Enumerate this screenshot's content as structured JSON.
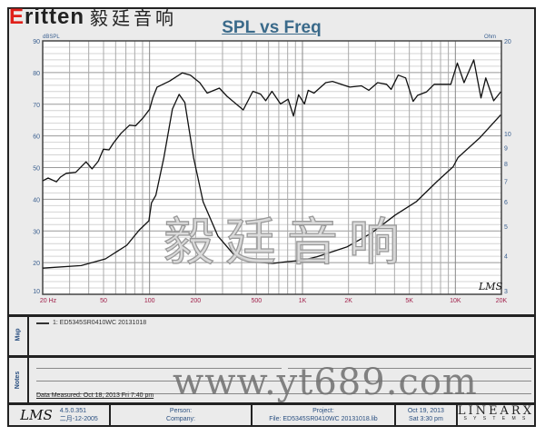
{
  "logo": {
    "brand_first": "E",
    "brand_rest": "ritten",
    "chinese": "毅廷音响"
  },
  "watermarks": {
    "chinese": "毅廷音响",
    "url": "www.yt689.com"
  },
  "chart_data": {
    "type": "line",
    "title": "SPL vs Freq",
    "xscale": "log",
    "xlim": [
      20,
      20000
    ],
    "x_tick_labels": [
      {
        "v": 20,
        "t": "20  Hz"
      },
      {
        "v": 50,
        "t": "50"
      },
      {
        "v": 100,
        "t": "100"
      },
      {
        "v": 200,
        "t": "200"
      },
      {
        "v": 500,
        "t": "500"
      },
      {
        "v": 1000,
        "t": "1K"
      },
      {
        "v": 2000,
        "t": "2K"
      },
      {
        "v": 5000,
        "t": "5K"
      },
      {
        "v": 10000,
        "t": "10K"
      },
      {
        "v": 20000,
        "t": "20K"
      }
    ],
    "ylabel_left": "dBSPL",
    "ylim_left": [
      10,
      90
    ],
    "y_ticks_left": [
      10,
      20,
      30,
      40,
      50,
      60,
      70,
      80,
      90
    ],
    "ylabel_right": "Ohm",
    "yscale_right": "log",
    "ylim_right": [
      3,
      20
    ],
    "y_ticks_right": [
      3,
      4,
      5,
      6,
      7,
      8,
      9,
      10,
      20
    ],
    "grid": true,
    "watermark": "LMS",
    "series": [
      {
        "axis": "left",
        "points": [
          [
            20,
            45.8
          ],
          [
            21.7,
            46.7
          ],
          [
            24.6,
            45.5
          ],
          [
            26.1,
            47
          ],
          [
            28.5,
            48.2
          ],
          [
            32.9,
            48.5
          ],
          [
            38.4,
            51.8
          ],
          [
            42.1,
            49.6
          ],
          [
            46.2,
            52
          ],
          [
            49.9,
            55.8
          ],
          [
            54.3,
            55.6
          ],
          [
            58,
            57.7
          ],
          [
            65,
            60.8
          ],
          [
            74,
            63.4
          ],
          [
            81,
            63.2
          ],
          [
            91,
            65.8
          ],
          [
            100,
            68.4
          ],
          [
            105,
            72
          ],
          [
            112,
            75.4
          ],
          [
            135,
            77.3
          ],
          [
            164,
            79.9
          ],
          [
            185,
            79.2
          ],
          [
            213,
            76.8
          ],
          [
            238,
            73.5
          ],
          [
            286,
            75.1
          ],
          [
            321,
            72.5
          ],
          [
            410,
            68.2
          ],
          [
            474,
            74.1
          ],
          [
            532,
            73.2
          ],
          [
            575,
            71.1
          ],
          [
            632,
            74.1
          ],
          [
            718,
            70.1
          ],
          [
            806,
            71.6
          ],
          [
            874,
            66.3
          ],
          [
            943,
            73
          ],
          [
            1030,
            70.1
          ],
          [
            1090,
            74.4
          ],
          [
            1190,
            73.5
          ],
          [
            1420,
            76.8
          ],
          [
            1570,
            77.2
          ],
          [
            1790,
            76.3
          ],
          [
            2040,
            75.4
          ],
          [
            2430,
            75.8
          ],
          [
            2720,
            74.4
          ],
          [
            3100,
            76.8
          ],
          [
            3550,
            76.3
          ],
          [
            3800,
            74.7
          ],
          [
            4230,
            79.2
          ],
          [
            4730,
            78.3
          ],
          [
            5290,
            70.9
          ],
          [
            5660,
            72.8
          ],
          [
            6490,
            73.9
          ],
          [
            7270,
            76.3
          ],
          [
            9340,
            76.3
          ],
          [
            10300,
            83
          ],
          [
            11400,
            76.8
          ],
          [
            13200,
            84
          ],
          [
            14700,
            72
          ],
          [
            15800,
            78.3
          ],
          [
            17800,
            71.1
          ],
          [
            19800,
            73.9
          ]
        ]
      },
      {
        "axis": "right",
        "points": [
          [
            20,
            3.65
          ],
          [
            35.7,
            3.72
          ],
          [
            51.5,
            3.91
          ],
          [
            71,
            4.33
          ],
          [
            85.5,
            4.85
          ],
          [
            99,
            5.2
          ],
          [
            103,
            5.95
          ],
          [
            110,
            6.3
          ],
          [
            124,
            8.35
          ],
          [
            141,
            12
          ],
          [
            156,
            13.4
          ],
          [
            170,
            12.6
          ],
          [
            194,
            8.35
          ],
          [
            224,
            6
          ],
          [
            280,
            4.64
          ],
          [
            354,
            4.05
          ],
          [
            445,
            3.83
          ],
          [
            640,
            3.78
          ],
          [
            785,
            3.83
          ],
          [
            990,
            3.87
          ],
          [
            1240,
            3.97
          ],
          [
            1960,
            4.28
          ],
          [
            2820,
            4.74
          ],
          [
            4050,
            5.43
          ],
          [
            5540,
            6
          ],
          [
            7560,
            6.97
          ],
          [
            9680,
            7.8
          ],
          [
            10400,
            8.35
          ],
          [
            14400,
            9.67
          ],
          [
            19800,
            11.5
          ]
        ]
      }
    ]
  },
  "map": {
    "label": "Map",
    "legend": "1: ED5345SR0410WC   20131018"
  },
  "notes": {
    "label": "Notes",
    "measured": "Data Measured: Oct 18, 2013  Fri  7:40 pm"
  },
  "footer": {
    "lms": "LMS",
    "version": "4.5.0.351",
    "build": "二月-12-2005",
    "person": "Person:",
    "company": "Company:",
    "project": "Project:",
    "file": "File: ED5345SR0410WC  20131018.lib",
    "date": "Oct 19, 2013",
    "time": "Sat  3:30 pm",
    "brand": "LINEARX",
    "brand_sub": "S Y S T E M S"
  },
  "colors": {
    "title": "#3a6a8a",
    "left_ticks": "#3a5f8f",
    "x_ticks": "#a0204a",
    "curve": "#111111",
    "logo_red": "#e0201a"
  }
}
